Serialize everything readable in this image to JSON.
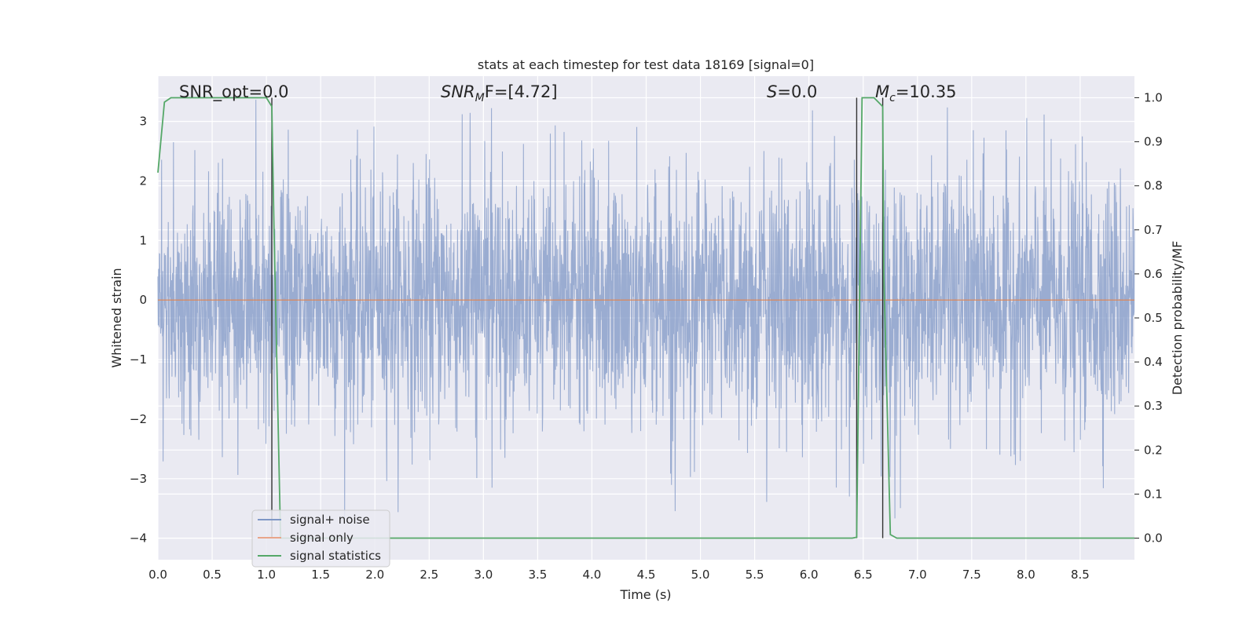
{
  "chart_data": {
    "type": "line",
    "title": "stats at each timestep for test data 18169 [signal=0]",
    "xlabel": "Time (s)",
    "ylabel": "Whitened strain",
    "y2label": "Detection probability/MF",
    "xlim": [
      0,
      9.0
    ],
    "ylim": [
      -4.36,
      3.76
    ],
    "y2lim": [
      -0.049,
      1.049
    ],
    "grid": true,
    "legend_position": "lower-left",
    "x_ticks": [
      "0.0",
      "0.5",
      "1.0",
      "1.5",
      "2.0",
      "2.5",
      "3.0",
      "3.5",
      "4.0",
      "4.5",
      "5.0",
      "5.5",
      "6.0",
      "6.5",
      "7.0",
      "7.5",
      "8.0",
      "8.5"
    ],
    "y_ticks": [
      "3",
      "2",
      "1",
      "0",
      "−1",
      "−2",
      "−3",
      "−4"
    ],
    "y2_ticks": [
      "1.0",
      "0.9",
      "0.8",
      "0.7",
      "0.6",
      "0.5",
      "0.4",
      "0.3",
      "0.2",
      "0.1",
      "0.0"
    ],
    "annotations": {
      "snr_opt": "SNR_opt=0.0",
      "snr_mf_main": "SNR",
      "snr_mf_sub": "M",
      "snr_mf_rest": "F=[4.72]",
      "s_main": "S",
      "s_rest": "=0.0",
      "mc_main": "M",
      "mc_sub": "c",
      "mc_rest": "=10.35"
    },
    "vertical_lines_x": [
      1.05,
      6.44,
      6.68
    ],
    "series": [
      {
        "name": "signal+ noise",
        "axis": "left",
        "color": "#7f97c6",
        "description_values": "noisy whitened strain, approx. within [-3.7, 3.4], baseline 0",
        "envelope_abs_max": 3.4
      },
      {
        "name": "signal only",
        "axis": "left",
        "color": "#dd8452",
        "x": [
          0,
          9.0
        ],
        "values": [
          0,
          0
        ]
      },
      {
        "name": "signal statistics",
        "axis": "right",
        "color": "#55a868",
        "x": [
          0.0,
          0.06,
          0.12,
          0.9,
          1.0,
          1.05,
          1.07,
          1.13,
          1.2,
          6.4,
          6.44,
          6.49,
          6.6,
          6.68,
          6.69,
          6.75,
          6.81,
          9.0
        ],
        "values": [
          0.83,
          0.99,
          1.0,
          1.0,
          1.0,
          0.98,
          0.7,
          0.0,
          0.0,
          0.0,
          0.002,
          1.0,
          1.0,
          0.98,
          0.6,
          0.008,
          0.0,
          0.0
        ]
      }
    ],
    "colors": {
      "background": "#eaeaf2",
      "grid": "#ffffff",
      "vline": "#333333"
    }
  }
}
